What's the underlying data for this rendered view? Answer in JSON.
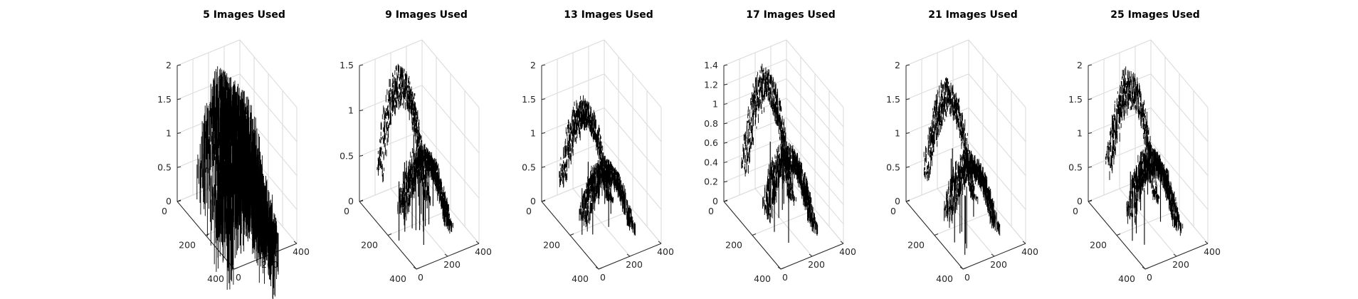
{
  "figure": {
    "background": "#ffffff",
    "data_color": "#000000"
  },
  "chart_data": [
    {
      "type": "surface3d",
      "title": "5 Images Used",
      "xlabel": "",
      "ylabel": "",
      "zlabel": "",
      "xlim": [
        0,
        400
      ],
      "ylim": [
        0,
        400
      ],
      "zlim": [
        0,
        2
      ],
      "x_ticks": [
        "0",
        "200",
        "400"
      ],
      "y_ticks": [
        "0",
        "200",
        "400"
      ],
      "z_ticks": [
        "0",
        "0.5",
        "1",
        "1.5",
        "2"
      ],
      "grid": true,
      "upper_ridge_peak": 2.0,
      "lower_ridge_peak": 1.3
    },
    {
      "type": "surface3d",
      "title": "9 Images Used",
      "xlabel": "",
      "ylabel": "",
      "zlabel": "",
      "xlim": [
        0,
        400
      ],
      "ylim": [
        0,
        400
      ],
      "zlim": [
        0,
        1.5
      ],
      "x_ticks": [
        "0",
        "200",
        "400"
      ],
      "y_ticks": [
        "0",
        "200",
        "400"
      ],
      "z_ticks": [
        "0",
        "0.5",
        "1",
        "1.5"
      ],
      "grid": true,
      "upper_ridge_peak": 1.45,
      "lower_ridge_peak": 0.9
    },
    {
      "type": "surface3d",
      "title": "13 Images Used",
      "xlabel": "",
      "ylabel": "",
      "zlabel": "",
      "xlim": [
        0,
        400
      ],
      "ylim": [
        0,
        400
      ],
      "zlim": [
        0,
        2
      ],
      "x_ticks": [
        "0",
        "200",
        "400"
      ],
      "y_ticks": [
        "0",
        "200",
        "400"
      ],
      "z_ticks": [
        "0",
        "0.5",
        "1",
        "1.5",
        "2"
      ],
      "grid": true,
      "upper_ridge_peak": 1.5,
      "lower_ridge_peak": 1.0
    },
    {
      "type": "surface3d",
      "title": "17 Images Used",
      "xlabel": "",
      "ylabel": "",
      "zlabel": "",
      "xlim": [
        0,
        400
      ],
      "ylim": [
        0,
        400
      ],
      "zlim": [
        0,
        1.4
      ],
      "x_ticks": [
        "0",
        "200",
        "400"
      ],
      "y_ticks": [
        "0",
        "200",
        "400"
      ],
      "z_ticks": [
        "0",
        "0.2",
        "0.4",
        "0.6",
        "0.8",
        "1",
        "1.2",
        "1.4"
      ],
      "grid": true,
      "upper_ridge_peak": 1.35,
      "lower_ridge_peak": 0.85
    },
    {
      "type": "surface3d",
      "title": "21 Images Used",
      "xlabel": "",
      "ylabel": "",
      "zlabel": "",
      "xlim": [
        0,
        400
      ],
      "ylim": [
        0,
        400
      ],
      "zlim": [
        0,
        2
      ],
      "x_ticks": [
        "0",
        "200",
        "400"
      ],
      "y_ticks": [
        "0",
        "200",
        "400"
      ],
      "z_ticks": [
        "0",
        "0.5",
        "1",
        "1.5",
        "2"
      ],
      "grid": true,
      "upper_ridge_peak": 1.75,
      "lower_ridge_peak": 1.1
    },
    {
      "type": "surface3d",
      "title": "25 Images Used",
      "xlabel": "",
      "ylabel": "",
      "zlabel": "",
      "xlim": [
        0,
        400
      ],
      "ylim": [
        0,
        400
      ],
      "zlim": [
        0,
        2
      ],
      "x_ticks": [
        "0",
        "200",
        "400"
      ],
      "y_ticks": [
        "0",
        "200",
        "400"
      ],
      "z_ticks": [
        "0",
        "0.5",
        "1",
        "1.5",
        "2"
      ],
      "grid": true,
      "upper_ridge_peak": 1.9,
      "lower_ridge_peak": 1.15
    }
  ]
}
